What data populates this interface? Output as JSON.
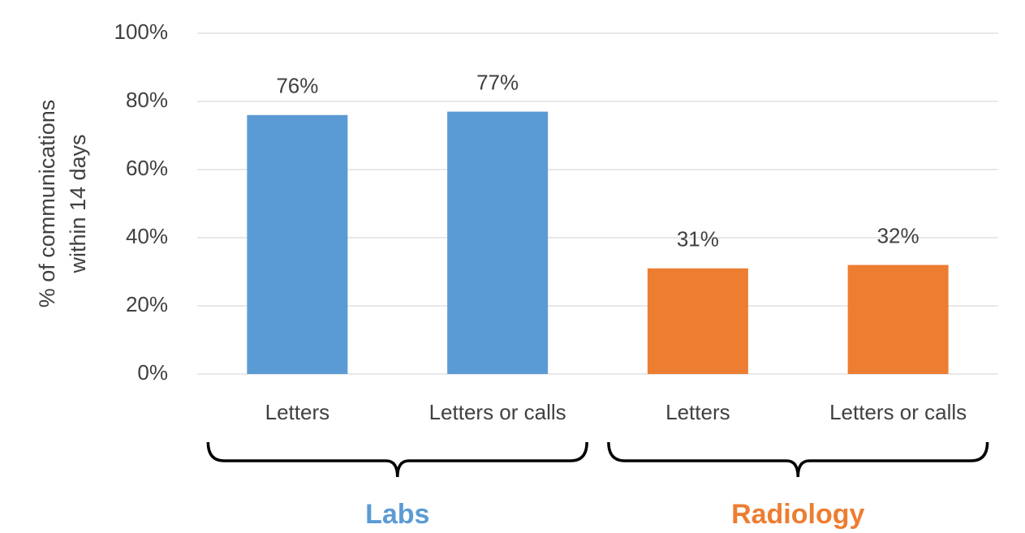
{
  "chart_data": {
    "type": "bar",
    "ylabel": [
      "% of communications",
      "within 14 days"
    ],
    "categories": [
      "Letters",
      "Letters or calls",
      "Letters",
      "Letters or calls"
    ],
    "series": [
      {
        "name": "Labs",
        "color": "#5b9bd5",
        "values": [
          76,
          77,
          null,
          null
        ],
        "value_labels": [
          "76%",
          "77%",
          null,
          null
        ]
      },
      {
        "name": "Radiology",
        "color": "#ed7d31",
        "values": [
          null,
          null,
          31,
          32
        ],
        "value_labels": [
          null,
          null,
          "31%",
          "32%"
        ]
      }
    ],
    "ylim": [
      0,
      100
    ],
    "yticks": [
      {
        "value": 0,
        "label": "0%"
      },
      {
        "value": 20,
        "label": "20%"
      },
      {
        "value": 40,
        "label": "40%"
      },
      {
        "value": 60,
        "label": "60%"
      },
      {
        "value": 80,
        "label": "80%"
      },
      {
        "value": 100,
        "label": "100%"
      }
    ],
    "grid": true
  }
}
